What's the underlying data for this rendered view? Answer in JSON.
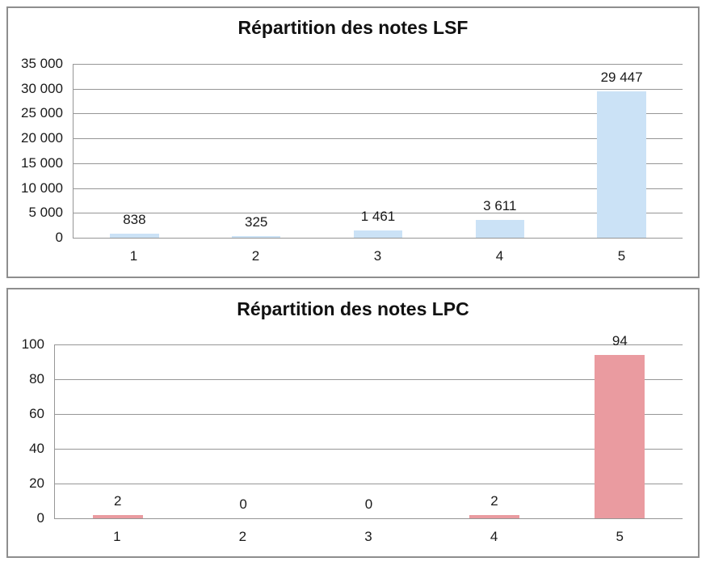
{
  "chart_data": [
    {
      "type": "bar",
      "title": "Répartition des notes LSF",
      "categories": [
        "1",
        "2",
        "3",
        "4",
        "5"
      ],
      "values": [
        838,
        325,
        1461,
        3611,
        29447
      ],
      "value_labels": [
        "838",
        "325",
        "1 461",
        "3 611",
        "29 447"
      ],
      "ylim": [
        0,
        35000
      ],
      "ytick_step": 5000,
      "ytick_labels": [
        "0",
        "5 000",
        "10 000",
        "15 000",
        "20 000",
        "25 000",
        "30 000",
        "35 000"
      ],
      "bar_color": "#cbe2f6",
      "gridline_color": "#969696",
      "grid": "horizontal",
      "legend": "none",
      "data_label_position": "outside-end"
    },
    {
      "type": "bar",
      "title": "Répartition des notes LPC",
      "categories": [
        "1",
        "2",
        "3",
        "4",
        "5"
      ],
      "values": [
        2,
        0,
        0,
        2,
        94
      ],
      "value_labels": [
        "2",
        "0",
        "0",
        "2",
        "94"
      ],
      "ylim": [
        0,
        100
      ],
      "ytick_step": 20,
      "ytick_labels": [
        "0",
        "20",
        "40",
        "60",
        "80",
        "100"
      ],
      "bar_color": "#ea9ba0",
      "gridline_color": "#969696",
      "grid": "horizontal",
      "legend": "none",
      "data_label_position": "outside-end"
    }
  ]
}
